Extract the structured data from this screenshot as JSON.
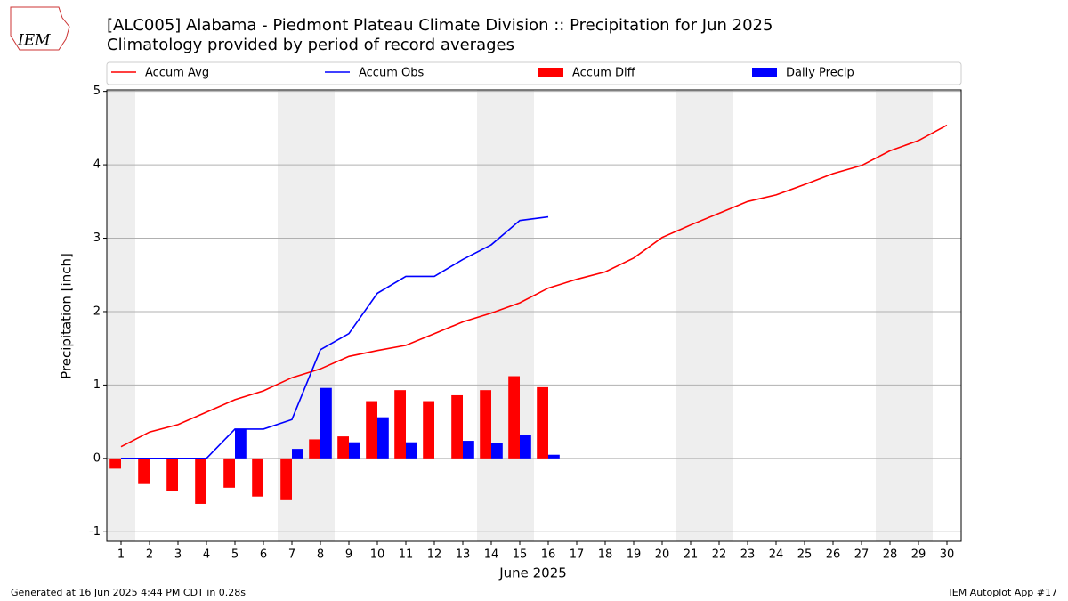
{
  "chart_data": {
    "type": "bar_line",
    "title": "[ALC005] Alabama - Piedmont Plateau Climate Division :: Precipitation for Jun 2025",
    "subtitle": "Climatology provided by period of record averages",
    "xlabel": "June 2025",
    "ylabel": "Precipitation [inch]",
    "x": [
      1,
      2,
      3,
      4,
      5,
      6,
      7,
      8,
      9,
      10,
      11,
      12,
      13,
      14,
      15,
      16,
      17,
      18,
      19,
      20,
      21,
      22,
      23,
      24,
      25,
      26,
      27,
      28,
      29,
      30
    ],
    "xlim": [
      0.5,
      30.5
    ],
    "xticks": [
      1,
      2,
      3,
      4,
      5,
      6,
      7,
      8,
      9,
      10,
      11,
      12,
      13,
      14,
      15,
      16,
      17,
      18,
      19,
      20,
      21,
      22,
      23,
      24,
      25,
      26,
      27,
      28,
      29,
      30
    ],
    "ylim": [
      -1.13,
      5.02
    ],
    "yticks": [
      -1,
      0,
      1,
      2,
      3,
      4,
      5
    ],
    "grid": true,
    "shaded_days": [
      1,
      7,
      8,
      14,
      15,
      21,
      22,
      28,
      29
    ],
    "series": [
      {
        "name": "Accum Avg",
        "kind": "line",
        "color": "#ff0000",
        "values": [
          0.16,
          0.36,
          0.46,
          0.63,
          0.8,
          0.92,
          1.1,
          1.22,
          1.39,
          1.47,
          1.54,
          1.7,
          1.86,
          1.98,
          2.12,
          2.32,
          2.44,
          2.54,
          2.73,
          3.01,
          3.18,
          3.34,
          3.5,
          3.59,
          3.73,
          3.88,
          3.99,
          4.19,
          4.33,
          4.54
        ]
      },
      {
        "name": "Accum Obs",
        "kind": "line",
        "color": "#0000ff",
        "values": [
          0,
          0,
          0,
          0,
          0.4,
          0.4,
          0.53,
          1.48,
          1.7,
          2.25,
          2.48,
          2.48,
          2.71,
          2.91,
          3.24,
          3.29,
          null,
          null,
          null,
          null,
          null,
          null,
          null,
          null,
          null,
          null,
          null,
          null,
          null,
          null
        ]
      },
      {
        "name": "Accum Diff",
        "kind": "bar",
        "color": "#ff0000",
        "values": [
          -0.14,
          -0.35,
          -0.45,
          -0.62,
          -0.4,
          -0.52,
          -0.57,
          0.26,
          0.3,
          0.78,
          0.93,
          0.78,
          0.86,
          0.93,
          1.12,
          0.97,
          null,
          null,
          null,
          null,
          null,
          null,
          null,
          null,
          null,
          null,
          null,
          null,
          null,
          null
        ]
      },
      {
        "name": "Daily Precip",
        "kind": "bar",
        "color": "#0000ff",
        "values": [
          0,
          0,
          0,
          0,
          0.4,
          0,
          0.13,
          0.96,
          0.22,
          0.56,
          0.22,
          0,
          0.24,
          0.21,
          0.32,
          0.05,
          null,
          null,
          null,
          null,
          null,
          null,
          null,
          null,
          null,
          null,
          null,
          null,
          null,
          null
        ]
      }
    ],
    "logo_text": "IEM",
    "footer_left": "Generated at 16 Jun 2025 4:44 PM CDT in 0.28s",
    "footer_right": "IEM Autoplot App #17"
  }
}
